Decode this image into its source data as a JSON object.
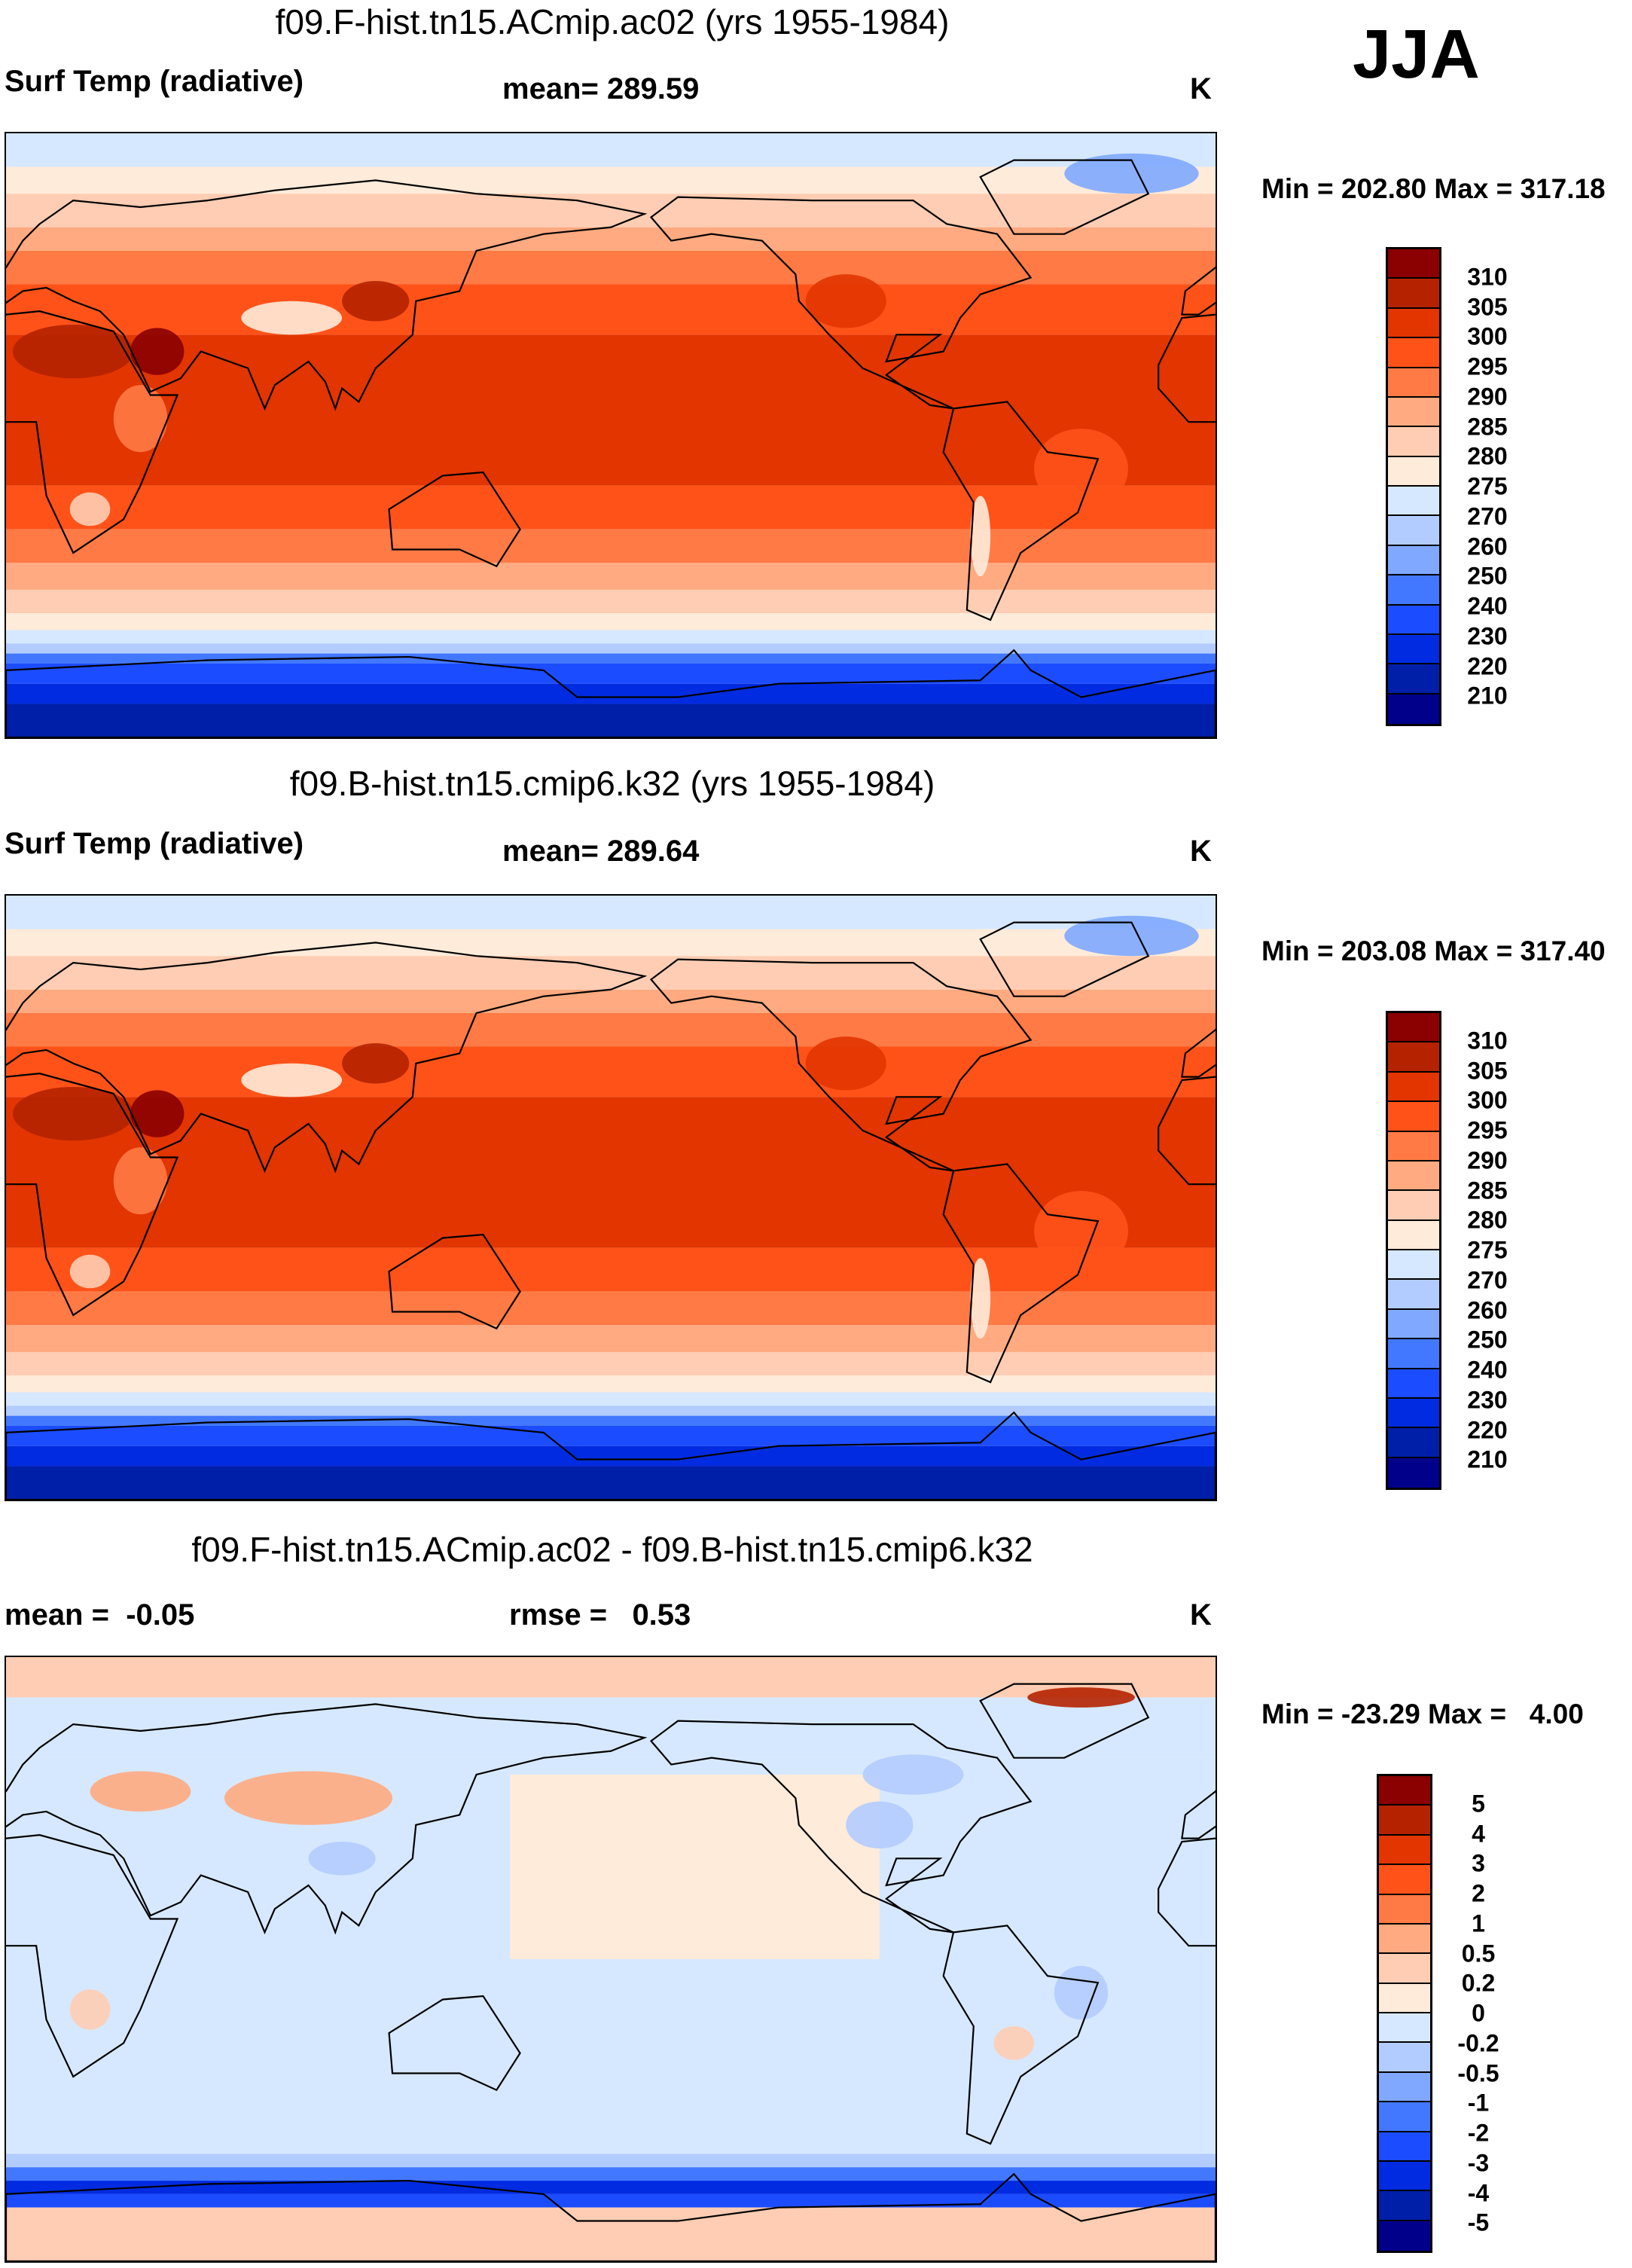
{
  "season": "JJA",
  "chart_data": [
    {
      "type": "heatmap",
      "title": "f09.F-hist.tn15.ACmip.ac02 (yrs 1955-1984)",
      "variable": "Surf Temp (radiative)",
      "mean_label": "mean= 289.59",
      "units": "K",
      "minmax": "Min = 202.80 Max = 317.18",
      "min": 202.8,
      "max": 317.18,
      "mean": 289.59,
      "colorbar": {
        "labels": [
          "310",
          "305",
          "300",
          "295",
          "290",
          "285",
          "280",
          "275",
          "270",
          "260",
          "250",
          "240",
          "230",
          "220",
          "210"
        ]
      }
    },
    {
      "type": "heatmap",
      "title": "f09.B-hist.tn15.cmip6.k32 (yrs 1955-1984)",
      "variable": "Surf Temp (radiative)",
      "mean_label": "mean= 289.64",
      "units": "K",
      "minmax": "Min = 203.08 Max = 317.40",
      "min": 203.08,
      "max": 317.4,
      "mean": 289.64,
      "colorbar": {
        "labels": [
          "310",
          "305",
          "300",
          "295",
          "290",
          "285",
          "280",
          "275",
          "270",
          "260",
          "250",
          "240",
          "230",
          "220",
          "210"
        ]
      }
    },
    {
      "type": "heatmap",
      "title": "f09.F-hist.tn15.ACmip.ac02 - f09.B-hist.tn15.cmip6.k32",
      "mean_label": "mean =  -0.05",
      "rmse_label": "rmse =   0.53",
      "units": "K",
      "minmax": "Min = -23.29 Max =   4.00",
      "min": -23.29,
      "max": 4.0,
      "mean": -0.05,
      "rmse": 0.53,
      "colorbar": {
        "labels": [
          "5",
          "4",
          "3",
          "2",
          "1",
          "0.5",
          "0.2",
          "0",
          "-0.2",
          "-0.5",
          "-1",
          "-2",
          "-3",
          "-4",
          "-5"
        ]
      }
    }
  ],
  "colors": [
    "#8b0000",
    "#b52200",
    "#e23500",
    "#ff5219",
    "#ff7a45",
    "#ffaa80",
    "#ffcdb3",
    "#ffebd9",
    "#d6e8ff",
    "#b3ccff",
    "#80a8ff",
    "#4278ff",
    "#1c4cff",
    "#002be0",
    "#001fa8",
    "#00008b"
  ]
}
